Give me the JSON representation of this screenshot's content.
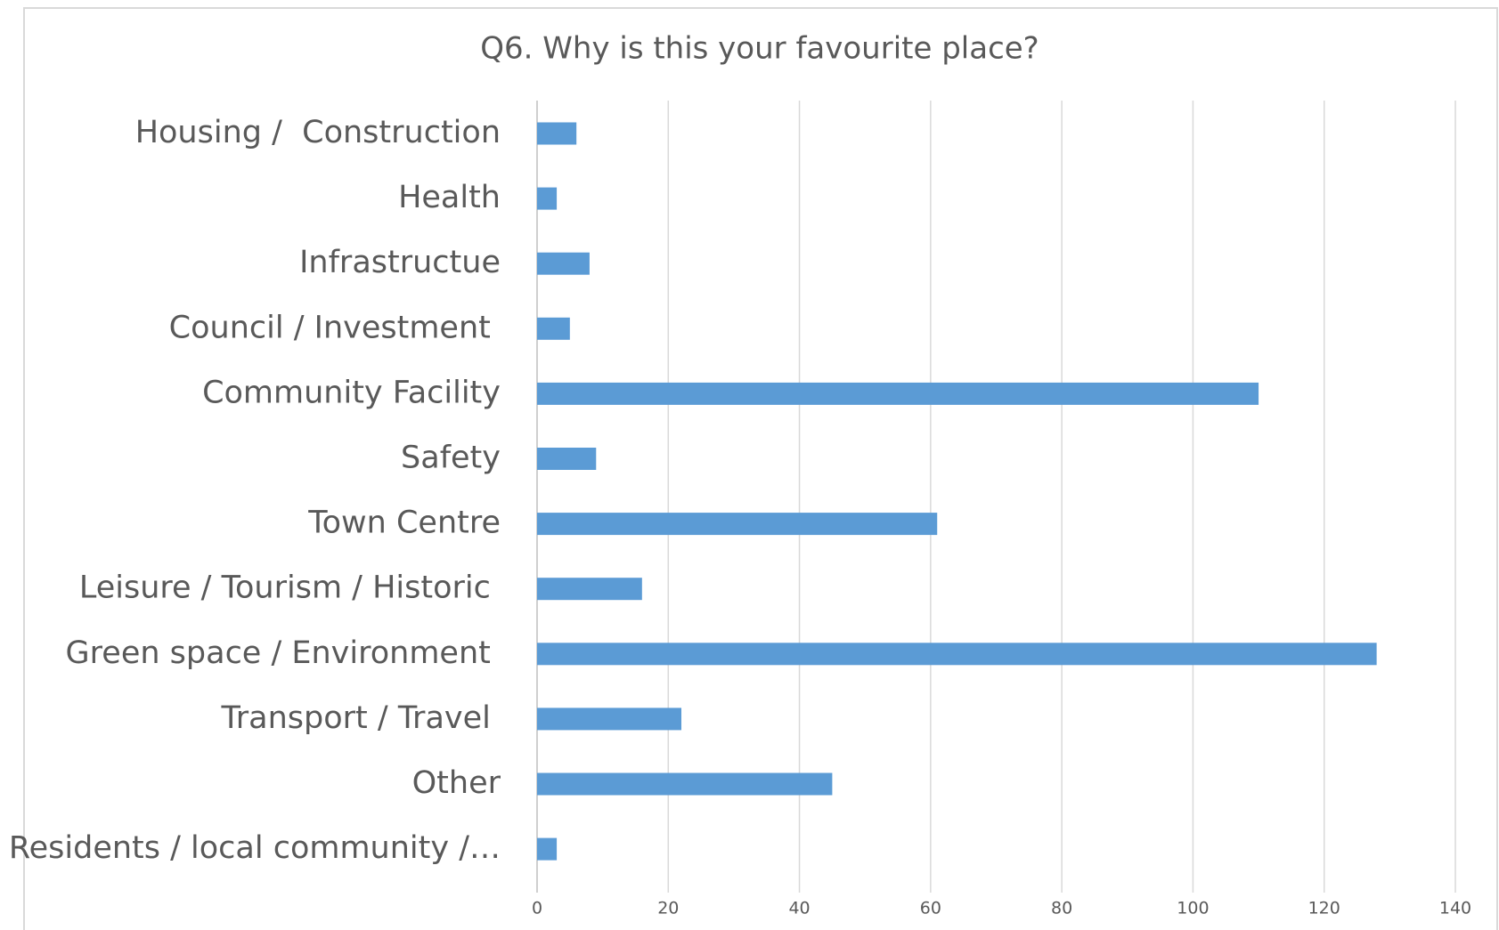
{
  "chart_data": {
    "type": "bar",
    "orientation": "horizontal",
    "title": "Q6. Why is this your favourite place?",
    "categories": [
      "Housing /  Construction",
      "Health",
      "Infrastructue",
      "Council / Investment ",
      "Community Facility",
      "Safety",
      "Town Centre",
      "Leisure / Tourism / Historic ",
      "Green space / Environment ",
      "Transport / Travel ",
      "Other",
      "Residents / local community /…"
    ],
    "values": [
      6,
      3,
      8,
      5,
      110,
      9,
      61,
      16,
      128,
      22,
      45,
      3
    ],
    "color": "#5b9bd5",
    "xlim": [
      0,
      140
    ],
    "xticks": [
      0,
      20,
      40,
      60,
      80,
      100,
      120,
      140
    ],
    "grid": true
  }
}
